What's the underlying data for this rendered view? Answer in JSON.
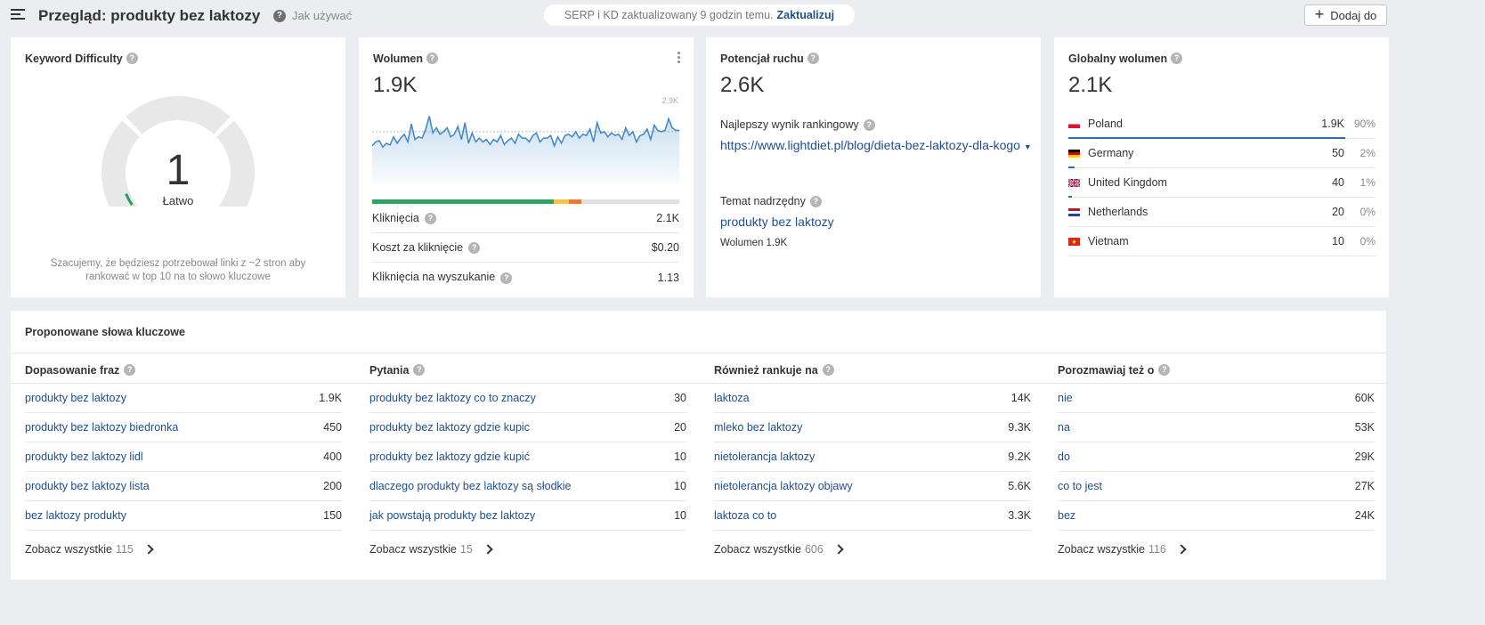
{
  "header": {
    "title": "Przegląd: produkty bez laktozy",
    "howto": "Jak używać",
    "serp_status": "SERP i KD zaktualizowany 9 godzin temu.",
    "update_label": "Zaktualizuj",
    "add_label": "Dodaj do"
  },
  "kd": {
    "title": "Keyword Difficulty",
    "value": "1",
    "level": 0.01,
    "label": "Łatwo",
    "note": "Szacujemy, że będziesz potrzebował linki z ~2 stron aby rankować w top 10 na to słowo kluczowe"
  },
  "volume": {
    "title": "Wolumen",
    "value": "1.9K",
    "chart_max_label": "2.9K",
    "trend": [
      1250,
      1400,
      1450,
      1200,
      1350,
      1280,
      1600,
      1350,
      1550,
      1700,
      1400,
      2100,
      1500,
      1600,
      1550,
      1900,
      2400,
      1750,
      1950,
      1700,
      1800,
      1950,
      1600,
      1700,
      2000,
      1500,
      2150,
      1350,
      1750,
      1400,
      1550,
      1400,
      1500,
      1300,
      1500,
      1400,
      1650,
      1300,
      1450,
      1550,
      1350,
      1700,
      1550,
      1550,
      1400,
      1650,
      1750,
      1400,
      1550,
      1550,
      1650,
      1250,
      1600,
      1350,
      1650,
      1700,
      1600,
      1800,
      1550,
      1700,
      1650,
      1900,
      1400,
      2150,
      1750,
      1800,
      1600,
      1750,
      1650,
      1700,
      1500,
      1950,
      1650,
      1800,
      1400,
      1650,
      1700,
      1900,
      1500,
      2050,
      1850,
      1800,
      1850,
      2300,
      1950,
      1850,
      1850
    ],
    "avg": 1800,
    "chart_max": 2900,
    "bar_green": 0.59,
    "bar_yellow": 0.05,
    "bar_orange": 0.04,
    "metrics": [
      {
        "label": "Kliknięcia",
        "value": "2.1K"
      },
      {
        "label": "Koszt za kliknięcie",
        "value": "$0.20"
      },
      {
        "label": "Kliknięcia na wyszukanie",
        "value": "1.13"
      }
    ]
  },
  "traffic": {
    "title": "Potencjał ruchu",
    "value": "2.6K",
    "best_label": "Najlepszy wynik rankingowy",
    "best_url": "https://www.lightdiet.pl/blog/dieta-bez-laktozy-dla-kogo",
    "parent_label": "Temat nadrzędny",
    "parent_topic": "produkty bez laktozy",
    "parent_volume": "Wolumen 1.9K"
  },
  "global": {
    "title": "Globalny wolumen",
    "value": "2.1K",
    "countries": [
      {
        "name": "Poland",
        "value": "1.9K",
        "pct": "90%",
        "share": 0.9,
        "flag": "pl"
      },
      {
        "name": "Germany",
        "value": "50",
        "pct": "2%",
        "share": 0.02,
        "flag": "de"
      },
      {
        "name": "United Kingdom",
        "value": "40",
        "pct": "1%",
        "share": 0.01,
        "flag": "gb"
      },
      {
        "name": "Netherlands",
        "value": "20",
        "pct": "0%",
        "share": 0,
        "flag": "nl"
      },
      {
        "name": "Vietnam",
        "value": "10",
        "pct": "0%",
        "share": 0,
        "flag": "vn"
      }
    ]
  },
  "suggested": {
    "title": "Proponowane słowa kluczowe",
    "see_all_label": "Zobacz wszystkie",
    "columns": [
      {
        "title": "Dopasowanie fraz",
        "count": "115",
        "rows": [
          {
            "kw": "produkty bez laktozy",
            "v": "1.9K"
          },
          {
            "kw": "produkty bez laktozy biedronka",
            "v": "450"
          },
          {
            "kw": "produkty bez laktozy lidl",
            "v": "400"
          },
          {
            "kw": "produkty bez laktozy lista",
            "v": "200"
          },
          {
            "kw": "bez laktozy produkty",
            "v": "150"
          }
        ]
      },
      {
        "title": "Pytania",
        "count": "15",
        "rows": [
          {
            "kw": "produkty bez laktozy co to znaczy",
            "v": "30"
          },
          {
            "kw": "produkty bez laktozy gdzie kupic",
            "v": "20"
          },
          {
            "kw": "produkty bez laktozy gdzie kupić",
            "v": "10"
          },
          {
            "kw": "dlaczego produkty bez laktozy są słodkie",
            "v": "10"
          },
          {
            "kw": "jak powstają produkty bez laktozy",
            "v": "10"
          }
        ]
      },
      {
        "title": "Również rankuje na",
        "count": "606",
        "rows": [
          {
            "kw": "laktoza",
            "v": "14K"
          },
          {
            "kw": "mleko bez laktozy",
            "v": "9.3K"
          },
          {
            "kw": "nietolerancja laktozy",
            "v": "9.2K"
          },
          {
            "kw": "nietolerancja laktozy objawy",
            "v": "5.6K"
          },
          {
            "kw": "laktoza co to",
            "v": "3.3K"
          }
        ]
      },
      {
        "title": "Porozmawiaj też o",
        "count": "116",
        "rows": [
          {
            "kw": "nie",
            "v": "60K"
          },
          {
            "kw": "na",
            "v": "53K"
          },
          {
            "kw": "do",
            "v": "29K"
          },
          {
            "kw": "co to jest",
            "v": "27K"
          },
          {
            "kw": "bez",
            "v": "24K"
          }
        ]
      }
    ]
  },
  "colors": {
    "link": "#1d4f91",
    "chart_line": "#3c86cc",
    "gauge_green": "#1ea35a",
    "bar_green": "#2da462",
    "bar_yellow": "#f5c242",
    "bar_orange": "#f0782b"
  }
}
